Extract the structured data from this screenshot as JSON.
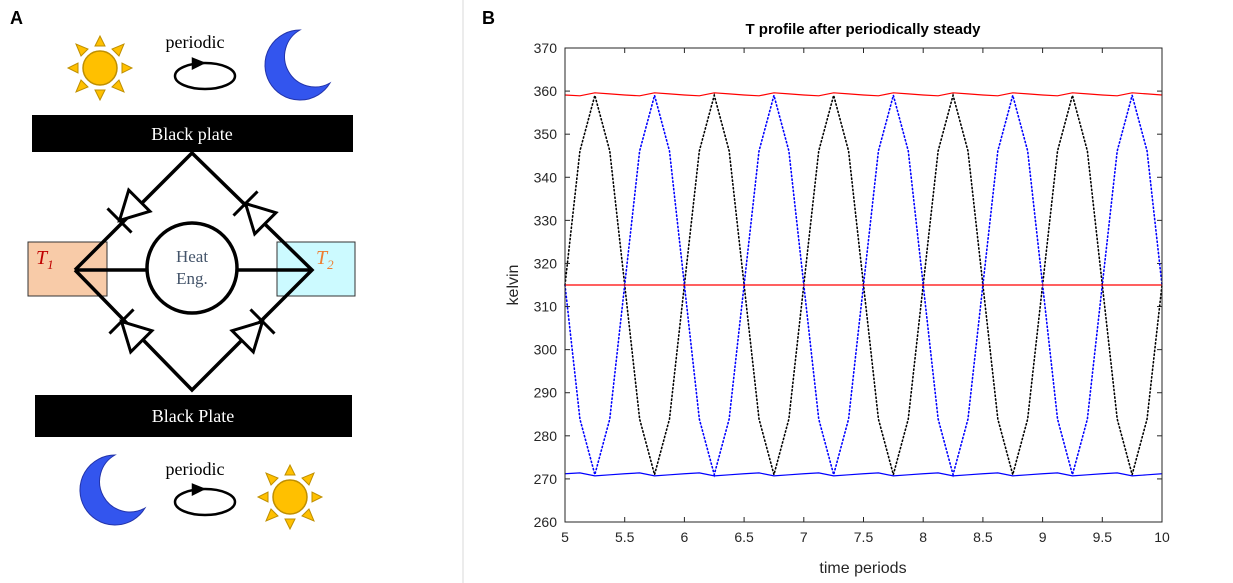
{
  "panel_a": {
    "panel_label": "A",
    "top_label": "periodic",
    "top_plate": "Black plate",
    "bottom_plate": "Black Plate",
    "bottom_label": "periodic",
    "t1": {
      "symbol": "T",
      "sub": "1"
    },
    "t2": {
      "symbol": "T",
      "sub": "2"
    },
    "engine": [
      "Heat",
      "Eng."
    ]
  },
  "chart_data": {
    "type": "line",
    "panel_label": "B",
    "title": "T profile after periodically steady",
    "xlabel": "time periods",
    "ylabel": "kelvin",
    "xlim": [
      5,
      10
    ],
    "ylim": [
      260,
      370
    ],
    "xticks": [
      5,
      5.5,
      6,
      6.5,
      7,
      7.5,
      8,
      8.5,
      9,
      9.5,
      10
    ],
    "yticks": [
      260,
      270,
      280,
      290,
      300,
      310,
      320,
      330,
      340,
      350,
      360,
      370
    ],
    "grid": false,
    "x": [
      5,
      5.125,
      5.25,
      5.375,
      5.5,
      5.625,
      5.75,
      5.875,
      6,
      6.125,
      6.25,
      6.375,
      6.5,
      6.625,
      6.75,
      6.875,
      7,
      7.125,
      7.25,
      7.375,
      7.5,
      7.625,
      7.75,
      7.875,
      8,
      8.125,
      8.25,
      8.375,
      8.5,
      8.625,
      8.75,
      8.875,
      9,
      9.125,
      9.25,
      9.375,
      9.5,
      9.625,
      9.75,
      9.875,
      10
    ],
    "series": [
      {
        "color": "#000000",
        "style": "dotted",
        "values": [
          315,
          346.1,
          359,
          346.1,
          315,
          283.9,
          271,
          283.9,
          315,
          346.1,
          359,
          346.1,
          315,
          283.9,
          271,
          283.9,
          315,
          346.1,
          359,
          346.1,
          315,
          283.9,
          271,
          283.9,
          315,
          346.1,
          359,
          346.1,
          315,
          283.9,
          271,
          283.9,
          315,
          346.1,
          359,
          346.1,
          315,
          283.9,
          271,
          283.9,
          315
        ]
      },
      {
        "color": "#0000ff",
        "style": "dotted",
        "values": [
          315,
          283.9,
          271,
          283.9,
          315,
          346.1,
          359,
          346.1,
          315,
          283.9,
          271,
          283.9,
          315,
          346.1,
          359,
          346.1,
          315,
          283.9,
          271,
          283.9,
          315,
          346.1,
          359,
          346.1,
          315,
          283.9,
          271,
          283.9,
          315,
          346.1,
          359,
          346.1,
          315,
          283.9,
          271,
          283.9,
          315,
          346.1,
          359,
          346.1,
          315
        ]
      },
      {
        "color": "#ff0000",
        "style": "solid",
        "values": [
          359.1,
          358.9,
          359.6,
          359.35,
          359.1,
          358.9,
          359.6,
          359.35,
          359.1,
          358.9,
          359.6,
          359.35,
          359.1,
          358.9,
          359.6,
          359.35,
          359.1,
          358.9,
          359.6,
          359.35,
          359.1,
          358.9,
          359.6,
          359.35,
          359.1,
          358.9,
          359.6,
          359.35,
          359.1,
          358.9,
          359.6,
          359.35,
          359.1,
          358.9,
          359.6,
          359.35,
          359.1,
          358.9,
          359.6,
          359.35,
          359.1
        ]
      },
      {
        "color": "#ff0000",
        "style": "solid",
        "values": [
          315,
          315,
          315,
          315,
          315,
          315,
          315,
          315,
          315,
          315,
          315,
          315,
          315,
          315,
          315,
          315,
          315,
          315,
          315,
          315,
          315,
          315,
          315,
          315,
          315,
          315,
          315,
          315,
          315,
          315,
          315,
          315,
          315,
          315,
          315,
          315,
          315,
          315,
          315,
          315,
          315
        ]
      },
      {
        "color": "#0000ff",
        "style": "solid",
        "values": [
          271.2,
          271.4,
          270.7,
          270.95,
          271.2,
          271.4,
          270.7,
          270.95,
          271.2,
          271.4,
          270.7,
          270.95,
          271.2,
          271.4,
          270.7,
          270.95,
          271.2,
          271.4,
          270.7,
          270.95,
          271.2,
          271.4,
          270.7,
          270.95,
          271.2,
          271.4,
          270.7,
          270.95,
          271.2,
          271.4,
          270.7,
          270.95,
          271.2,
          271.4,
          270.7,
          270.95,
          271.2,
          271.4,
          270.7,
          270.95,
          271.2
        ]
      }
    ]
  }
}
